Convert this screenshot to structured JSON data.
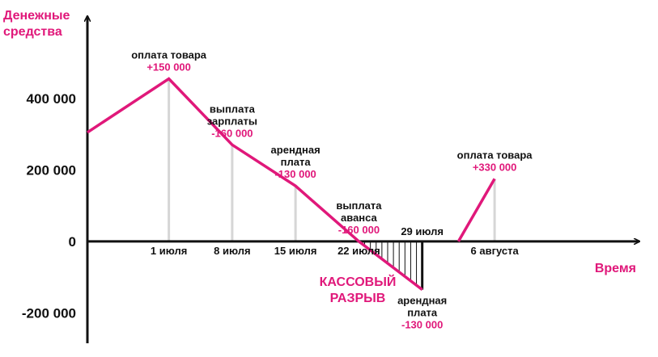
{
  "colors": {
    "accent": "#e0187a",
    "axis": "#111111",
    "guide": "#d6d6d6"
  },
  "chart_data": {
    "type": "line",
    "ylabel_lines": [
      "Денежные",
      "средства"
    ],
    "xlabel": "Время",
    "y_ticks": [
      400000,
      200000,
      0,
      -200000
    ],
    "y_tick_labels": [
      "400 000",
      "200 000",
      "0",
      "-200 000"
    ],
    "ylim": [
      -285000,
      630000
    ],
    "xlim": [
      -9,
      52
    ],
    "x_ticks": [
      {
        "x": 0,
        "label": "1 июля"
      },
      {
        "x": 7,
        "label": "8 июля"
      },
      {
        "x": 14,
        "label": "15 июля"
      },
      {
        "x": 21,
        "label": "22 июля"
      },
      {
        "x": 28,
        "label": "29 июля"
      },
      {
        "x": 36,
        "label": "6 августа"
      }
    ],
    "series": [
      {
        "segments": [
          [
            [
              -9,
              305000
            ],
            [
              0,
              455000
            ],
            [
              7,
              270000
            ],
            [
              14,
              155000
            ],
            [
              21,
              0
            ],
            [
              28,
              -135000
            ]
          ],
          [
            [
              32,
              0
            ],
            [
              36,
              175000
            ]
          ]
        ]
      }
    ],
    "guides": [
      {
        "x": 0,
        "y": 455000
      },
      {
        "x": 7,
        "y": 270000
      },
      {
        "x": 14,
        "y": 155000
      },
      {
        "x": 36,
        "y": 175000
      }
    ],
    "hatch": {
      "x_from": 21,
      "x_to": 28
    },
    "annotations": [
      {
        "x": 0,
        "anchor_y": 455000,
        "pos": "above",
        "lines": [
          "оплата товара"
        ],
        "value": "+150 000"
      },
      {
        "x": 7,
        "anchor_y": 270000,
        "pos": "above",
        "lines": [
          "выплата",
          "зарплаты"
        ],
        "value": "-160 000"
      },
      {
        "x": 14,
        "anchor_y": 155000,
        "pos": "above",
        "lines": [
          "арендная",
          "плата"
        ],
        "value": "-130 000"
      },
      {
        "x": 21,
        "anchor_y": 0,
        "pos": "above",
        "lines": [
          "выплата",
          "аванса"
        ],
        "value": "-160 000"
      },
      {
        "x": 28,
        "anchor_y": -135000,
        "pos": "below",
        "lines": [
          "арендная",
          "плата"
        ],
        "value": "-130 000"
      },
      {
        "x": 36,
        "anchor_y": 175000,
        "pos": "above",
        "lines": [
          "оплата товара"
        ],
        "value": "+330 000"
      }
    ],
    "gap_label_lines": [
      "КАССОВЫЙ",
      "РАЗРЫВ"
    ]
  }
}
